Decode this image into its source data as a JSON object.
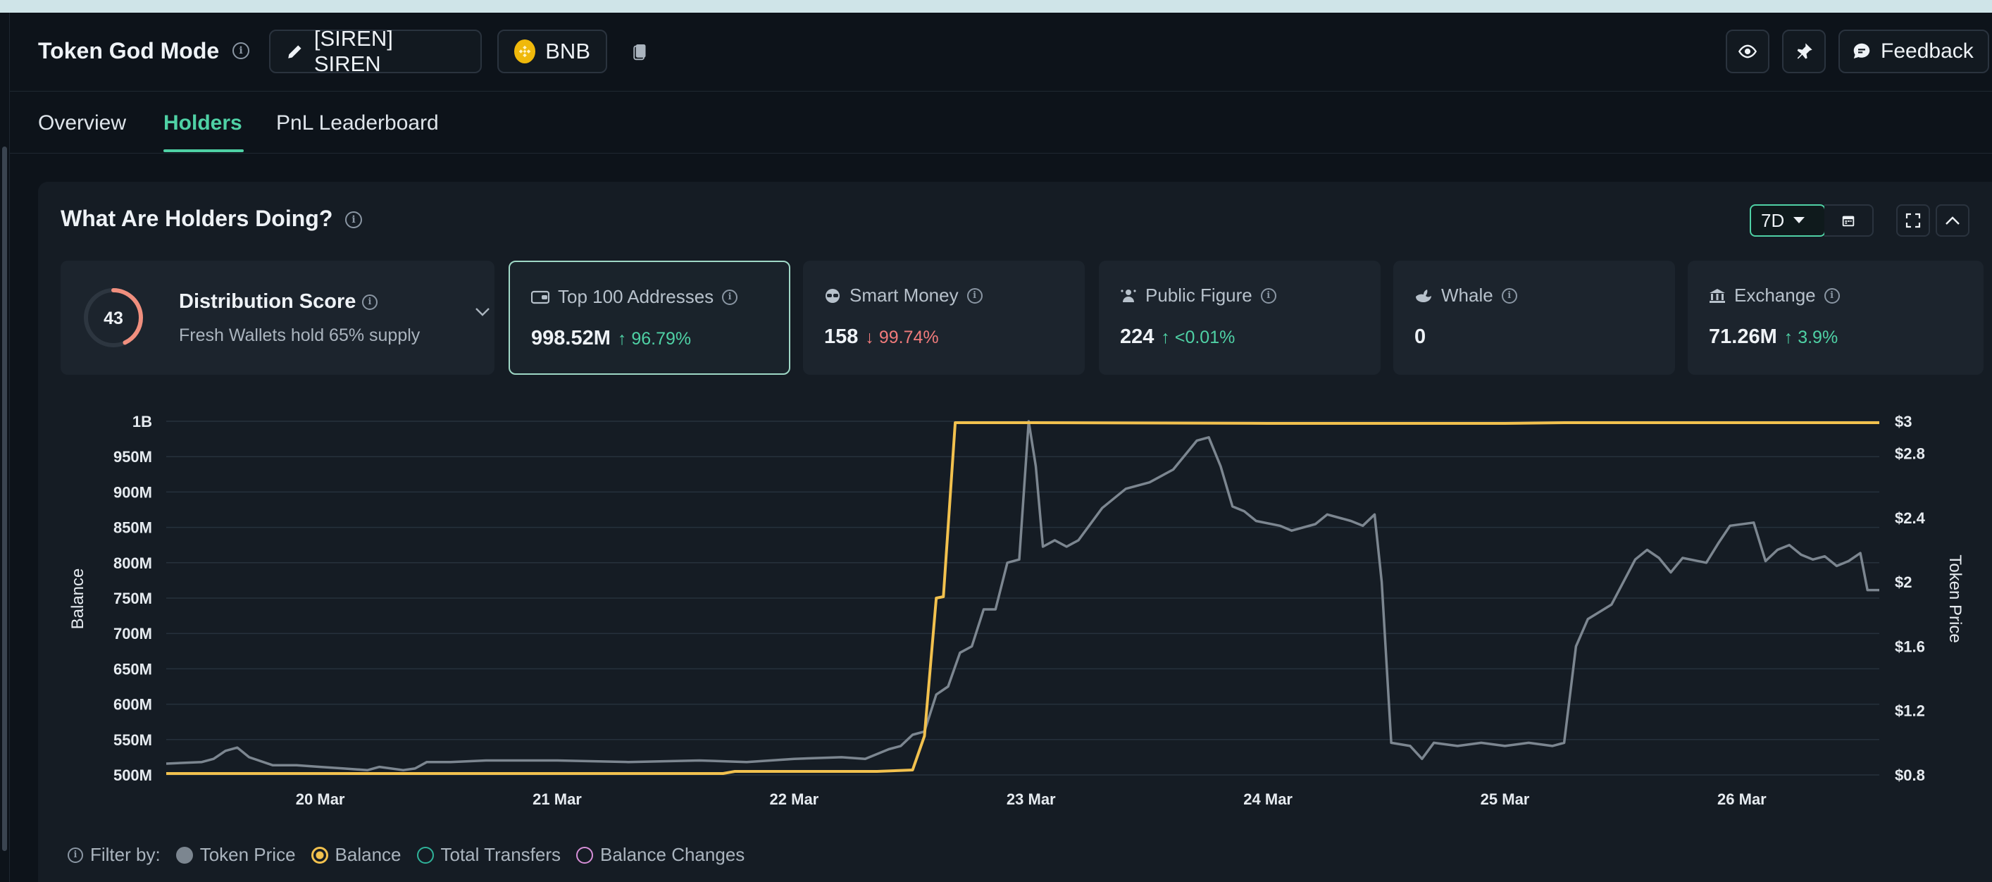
{
  "app": {
    "title": "Token God Mode",
    "token_label": "[SIREN] SIREN",
    "chain_label": "BNB",
    "feedback_label": "Feedback"
  },
  "tabs": [
    {
      "label": "Overview",
      "active": false
    },
    {
      "label": "Holders",
      "active": true
    },
    {
      "label": "PnL Leaderboard",
      "active": false
    }
  ],
  "panel": {
    "title": "What Are Holders Doing?",
    "period": "7D"
  },
  "distribution": {
    "score": "43",
    "score_value": 43,
    "title": "Distribution Score",
    "subtitle": "Fresh Wallets hold 65% supply"
  },
  "cards": [
    {
      "label": "Top 100 Addresses",
      "value": "998.52M",
      "change": "96.79%",
      "direction": "up",
      "icon": "wallet-icon",
      "selected": true
    },
    {
      "label": "Smart Money",
      "value": "158",
      "change": "99.74%",
      "direction": "down",
      "icon": "smart-money-icon",
      "selected": false
    },
    {
      "label": "Public Figure",
      "value": "224",
      "change": "<0.01%",
      "direction": "up",
      "icon": "public-figure-icon",
      "selected": false
    },
    {
      "label": "Whale",
      "value": "0",
      "change": "",
      "direction": "",
      "icon": "whale-icon",
      "selected": false
    },
    {
      "label": "Exchange",
      "value": "71.26M",
      "change": "3.9%",
      "direction": "up",
      "icon": "exchange-icon",
      "selected": false
    }
  ],
  "filter": {
    "label": "Filter by:",
    "items": [
      {
        "label": "Token Price",
        "style": "filled",
        "color": "#7c8690"
      },
      {
        "label": "Balance",
        "style": "ring-filled",
        "color": "#f2c14e"
      },
      {
        "label": "Total Transfers",
        "style": "ring",
        "color": "#2fb39a"
      },
      {
        "label": "Balance Changes",
        "style": "ring",
        "color": "#d78fd8"
      }
    ]
  },
  "colors": {
    "accent": "#4fd1a5",
    "balance_line": "#f2c14e",
    "price_line": "#7c8690",
    "down": "#f07b7b"
  },
  "chart_data": {
    "type": "line",
    "ylabel": "Balance",
    "y2label": "Token Price",
    "x_ticks": [
      "20 Mar",
      "21 Mar",
      "22 Mar",
      "23 Mar",
      "24 Mar",
      "25 Mar",
      "26 Mar"
    ],
    "y_ticks": [
      "1B",
      "950M",
      "900M",
      "850M",
      "800M",
      "750M",
      "700M",
      "650M",
      "600M",
      "550M",
      "500M"
    ],
    "y2_ticks": [
      "$3",
      "$2.8",
      "$2.4",
      "$2",
      "$1.6",
      "$1.2",
      "$0.8"
    ],
    "ylim": [
      500,
      1000
    ],
    "ylim_unit": "M",
    "y2lim": [
      0.8,
      3.0
    ],
    "xlim_days": [
      19.35,
      26.58
    ],
    "series": [
      {
        "name": "Balance",
        "axis": "left",
        "color": "#f2c14e",
        "points": [
          [
            19.35,
            502
          ],
          [
            20.0,
            502
          ],
          [
            21.0,
            502
          ],
          [
            21.7,
            502
          ],
          [
            21.75,
            505
          ],
          [
            22.0,
            505
          ],
          [
            22.35,
            505
          ],
          [
            22.5,
            507
          ],
          [
            22.55,
            555
          ],
          [
            22.6,
            750
          ],
          [
            22.63,
            752
          ],
          [
            22.68,
            998
          ],
          [
            23.0,
            998
          ],
          [
            24.0,
            997
          ],
          [
            25.0,
            997
          ],
          [
            25.25,
            998
          ],
          [
            26.0,
            998
          ],
          [
            26.58,
            998
          ]
        ]
      },
      {
        "name": "Token Price",
        "axis": "right",
        "color": "#7c8690",
        "points": [
          [
            19.35,
            0.87
          ],
          [
            19.5,
            0.88
          ],
          [
            19.55,
            0.9
          ],
          [
            19.6,
            0.95
          ],
          [
            19.65,
            0.97
          ],
          [
            19.7,
            0.91
          ],
          [
            19.8,
            0.86
          ],
          [
            19.9,
            0.86
          ],
          [
            20.0,
            0.85
          ],
          [
            20.1,
            0.84
          ],
          [
            20.2,
            0.83
          ],
          [
            20.25,
            0.85
          ],
          [
            20.35,
            0.83
          ],
          [
            20.4,
            0.84
          ],
          [
            20.45,
            0.88
          ],
          [
            20.55,
            0.88
          ],
          [
            20.7,
            0.89
          ],
          [
            21.0,
            0.89
          ],
          [
            21.3,
            0.88
          ],
          [
            21.6,
            0.89
          ],
          [
            21.8,
            0.88
          ],
          [
            22.0,
            0.9
          ],
          [
            22.2,
            0.91
          ],
          [
            22.3,
            0.9
          ],
          [
            22.4,
            0.96
          ],
          [
            22.45,
            0.98
          ],
          [
            22.5,
            1.05
          ],
          [
            22.55,
            1.07
          ],
          [
            22.6,
            1.3
          ],
          [
            22.65,
            1.35
          ],
          [
            22.7,
            1.56
          ],
          [
            22.75,
            1.6
          ],
          [
            22.8,
            1.83
          ],
          [
            22.85,
            1.83
          ],
          [
            22.9,
            2.12
          ],
          [
            22.95,
            2.14
          ],
          [
            22.99,
            3.0
          ],
          [
            23.02,
            2.72
          ],
          [
            23.05,
            2.22
          ],
          [
            23.1,
            2.26
          ],
          [
            23.15,
            2.22
          ],
          [
            23.2,
            2.26
          ],
          [
            23.3,
            2.46
          ],
          [
            23.4,
            2.58
          ],
          [
            23.5,
            2.62
          ],
          [
            23.6,
            2.7
          ],
          [
            23.7,
            2.88
          ],
          [
            23.75,
            2.9
          ],
          [
            23.8,
            2.72
          ],
          [
            23.85,
            2.47
          ],
          [
            23.9,
            2.44
          ],
          [
            23.95,
            2.38
          ],
          [
            24.05,
            2.35
          ],
          [
            24.1,
            2.32
          ],
          [
            24.2,
            2.36
          ],
          [
            24.25,
            2.42
          ],
          [
            24.35,
            2.38
          ],
          [
            24.4,
            2.35
          ],
          [
            24.45,
            2.42
          ],
          [
            24.48,
            2.0
          ],
          [
            24.52,
            1.0
          ],
          [
            24.6,
            0.98
          ],
          [
            24.65,
            0.9
          ],
          [
            24.7,
            1.0
          ],
          [
            24.8,
            0.98
          ],
          [
            24.9,
            1.0
          ],
          [
            25.0,
            0.98
          ],
          [
            25.1,
            1.0
          ],
          [
            25.2,
            0.98
          ],
          [
            25.25,
            1.0
          ],
          [
            25.3,
            1.6
          ],
          [
            25.35,
            1.77
          ],
          [
            25.45,
            1.86
          ],
          [
            25.55,
            2.14
          ],
          [
            25.6,
            2.2
          ],
          [
            25.65,
            2.15
          ],
          [
            25.7,
            2.06
          ],
          [
            25.75,
            2.15
          ],
          [
            25.85,
            2.12
          ],
          [
            25.9,
            2.24
          ],
          [
            25.95,
            2.35
          ],
          [
            26.05,
            2.37
          ],
          [
            26.1,
            2.13
          ],
          [
            26.15,
            2.2
          ],
          [
            26.2,
            2.23
          ],
          [
            26.25,
            2.17
          ],
          [
            26.3,
            2.14
          ],
          [
            26.35,
            2.16
          ],
          [
            26.4,
            2.1
          ],
          [
            26.45,
            2.13
          ],
          [
            26.5,
            2.18
          ],
          [
            26.53,
            1.95
          ],
          [
            26.58,
            1.95
          ]
        ]
      }
    ]
  }
}
